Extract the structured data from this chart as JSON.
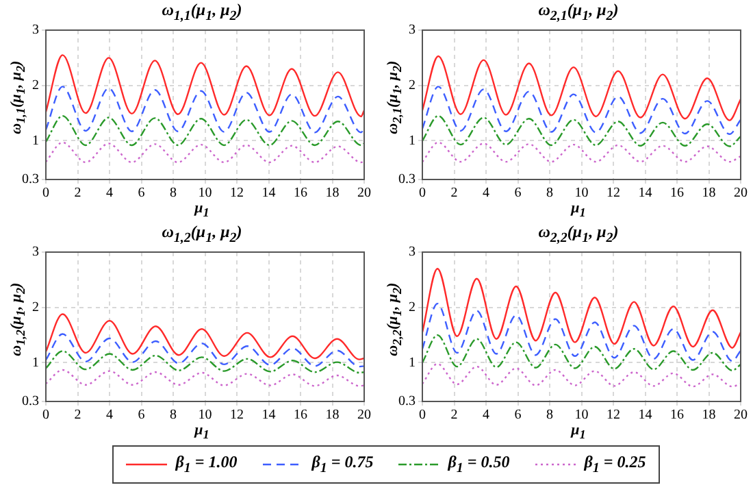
{
  "chart_data": [
    {
      "type": "line",
      "title": "ω$_{1,1}$(μ$_{1}$, μ$_{2}$)",
      "xlabel": "μ$_{1}$",
      "ylabel": "ω$_{1,1}$(μ$_{1}$, μ$_{2}$)",
      "xlim": [
        0,
        20
      ],
      "xticks": [
        0,
        2,
        4,
        6,
        8,
        10,
        12,
        14,
        16,
        18,
        20
      ],
      "ylim": [
        0.3,
        3
      ],
      "yticks": [
        0.3,
        1,
        2,
        3
      ],
      "grid": true,
      "legend": "bottom",
      "marker": "none",
      "x": [
        0,
        1.05,
        2.5,
        3.95,
        5.4,
        6.85,
        8.3,
        9.75,
        11.2,
        12.6,
        14.05,
        15.45,
        16.9,
        18.35,
        19.8,
        20
      ],
      "series": [
        {
          "name": "β$_{1}$ = 1.00",
          "color": "#ff2a2a",
          "line_style": "solid",
          "values": [
            1.52,
            2.55,
            1.5,
            2.5,
            1.49,
            2.45,
            1.48,
            2.41,
            1.47,
            2.35,
            1.46,
            2.3,
            1.45,
            2.24,
            1.44,
            1.55
          ]
        },
        {
          "name": "β$_{1}$ = 0.75",
          "color": "#3d5eff",
          "line_style": "dashed",
          "values": [
            1.2,
            1.98,
            1.18,
            1.95,
            1.17,
            1.92,
            1.17,
            1.9,
            1.16,
            1.87,
            1.16,
            1.84,
            1.15,
            1.8,
            1.15,
            1.22
          ]
        },
        {
          "name": "β$_{1}$ = 0.50",
          "color": "#2a9a2a",
          "line_style": "dashdot",
          "values": [
            0.98,
            1.45,
            0.92,
            1.42,
            0.92,
            1.41,
            0.92,
            1.4,
            0.92,
            1.38,
            0.92,
            1.36,
            0.92,
            1.35,
            0.92,
            0.95
          ]
        },
        {
          "name": "β$_{1}$ = 0.25",
          "color": "#cc66cc",
          "line_style": "dotted",
          "values": [
            0.62,
            0.97,
            0.61,
            0.95,
            0.61,
            0.94,
            0.61,
            0.93,
            0.61,
            0.92,
            0.61,
            0.91,
            0.61,
            0.9,
            0.61,
            0.62
          ]
        }
      ]
    },
    {
      "type": "line",
      "title": "ω$_{2,1}$(μ$_{1}$, μ$_{2}$)",
      "xlabel": "μ$_{1}$",
      "ylabel": "ω$_{2,1}$(μ$_{1}$, μ$_{2}$)",
      "xlim": [
        0,
        20
      ],
      "xticks": [
        0,
        2,
        4,
        6,
        8,
        10,
        12,
        14,
        16,
        18,
        20
      ],
      "ylim": [
        0.3,
        3
      ],
      "yticks": [
        0.3,
        1,
        2,
        3
      ],
      "grid": true,
      "marker": "none",
      "x": [
        0,
        1.0,
        2.4,
        3.85,
        5.25,
        6.7,
        8.1,
        9.5,
        10.9,
        12.3,
        13.7,
        15.1,
        16.5,
        17.9,
        19.3,
        20
      ],
      "series": [
        {
          "color": "#ff2a2a",
          "line_style": "solid",
          "values": [
            1.55,
            2.53,
            1.48,
            2.46,
            1.47,
            2.4,
            1.46,
            2.33,
            1.44,
            2.26,
            1.42,
            2.2,
            1.4,
            2.13,
            1.37,
            1.75
          ]
        },
        {
          "color": "#3d5eff",
          "line_style": "dashed",
          "values": [
            1.22,
            1.98,
            1.18,
            1.93,
            1.17,
            1.89,
            1.16,
            1.84,
            1.15,
            1.8,
            1.14,
            1.76,
            1.13,
            1.72,
            1.12,
            1.38
          ]
        },
        {
          "color": "#2a9a2a",
          "line_style": "dashdot",
          "values": [
            1.0,
            1.45,
            0.93,
            1.42,
            0.93,
            1.4,
            0.92,
            1.38,
            0.92,
            1.35,
            0.91,
            1.33,
            0.91,
            1.3,
            0.9,
            1.08
          ]
        },
        {
          "color": "#cc66cc",
          "line_style": "dotted",
          "values": [
            0.62,
            0.97,
            0.62,
            0.95,
            0.62,
            0.94,
            0.62,
            0.93,
            0.62,
            0.92,
            0.62,
            0.91,
            0.62,
            0.9,
            0.62,
            0.72
          ]
        }
      ]
    },
    {
      "type": "line",
      "title": "ω$_{1,2}$(μ$_{1}$, μ$_{2}$)",
      "xlabel": "μ$_{1}$",
      "ylabel": "ω$_{1,2}$(μ$_{1}$, μ$_{2}$)",
      "xlim": [
        0,
        20
      ],
      "xticks": [
        0,
        2,
        4,
        6,
        8,
        10,
        12,
        14,
        16,
        18,
        20
      ],
      "ylim": [
        0.3,
        3
      ],
      "yticks": [
        0.3,
        1,
        2,
        3
      ],
      "grid": true,
      "marker": "none",
      "x": [
        0,
        1.05,
        2.5,
        4.0,
        5.45,
        6.9,
        8.35,
        9.8,
        11.2,
        12.65,
        14.1,
        15.5,
        16.9,
        18.3,
        19.7,
        20
      ],
      "series": [
        {
          "color": "#ff2a2a",
          "line_style": "solid",
          "values": [
            1.2,
            1.88,
            1.18,
            1.76,
            1.16,
            1.66,
            1.14,
            1.61,
            1.12,
            1.54,
            1.1,
            1.48,
            1.08,
            1.43,
            1.06,
            1.08
          ]
        },
        {
          "color": "#3d5eff",
          "line_style": "dashed",
          "values": [
            1.05,
            1.52,
            1.02,
            1.44,
            1.01,
            1.39,
            0.99,
            1.35,
            0.97,
            1.3,
            0.96,
            1.26,
            0.94,
            1.22,
            0.93,
            0.94
          ]
        },
        {
          "color": "#2a9a2a",
          "line_style": "dashdot",
          "values": [
            0.9,
            1.21,
            0.88,
            1.16,
            0.87,
            1.13,
            0.86,
            1.1,
            0.85,
            1.07,
            0.84,
            1.04,
            0.83,
            1.01,
            0.82,
            0.83
          ]
        },
        {
          "color": "#cc66cc",
          "line_style": "dotted",
          "values": [
            0.62,
            0.87,
            0.6,
            0.85,
            0.6,
            0.83,
            0.6,
            0.82,
            0.59,
            0.8,
            0.59,
            0.79,
            0.58,
            0.77,
            0.58,
            0.59
          ]
        }
      ]
    },
    {
      "type": "line",
      "title": "ω$_{2,2}$(μ$_{1}$, μ$_{2}$)",
      "xlabel": "μ$_{1}$",
      "ylabel": "ω$_{2,2}$(μ$_{1}$, μ$_{2}$)",
      "xlim": [
        0,
        20
      ],
      "xticks": [
        0,
        2,
        4,
        6,
        8,
        10,
        12,
        14,
        16,
        18,
        20
      ],
      "ylim": [
        0.3,
        3
      ],
      "yticks": [
        0.3,
        1,
        2,
        3
      ],
      "grid": true,
      "marker": "none",
      "x": [
        0,
        0.95,
        2.18,
        3.42,
        4.65,
        5.89,
        7.12,
        8.36,
        9.59,
        10.83,
        12.06,
        13.3,
        14.53,
        15.77,
        17.0,
        18.24,
        19.47,
        20
      ],
      "series": [
        {
          "color": "#ff2a2a",
          "line_style": "solid",
          "values": [
            1.55,
            2.7,
            1.48,
            2.52,
            1.43,
            2.38,
            1.4,
            2.27,
            1.37,
            2.18,
            1.34,
            2.1,
            1.31,
            2.02,
            1.29,
            1.95,
            1.27,
            1.55
          ]
        },
        {
          "color": "#3d5eff",
          "line_style": "dashed",
          "values": [
            1.25,
            2.07,
            1.18,
            1.94,
            1.16,
            1.86,
            1.14,
            1.79,
            1.12,
            1.73,
            1.09,
            1.67,
            1.07,
            1.61,
            1.05,
            1.56,
            1.03,
            1.22
          ]
        },
        {
          "color": "#2a9a2a",
          "line_style": "dashdot",
          "values": [
            1.0,
            1.5,
            0.93,
            1.43,
            0.92,
            1.37,
            0.91,
            1.33,
            0.9,
            1.29,
            0.89,
            1.25,
            0.88,
            1.21,
            0.87,
            1.18,
            0.86,
            0.97
          ]
        },
        {
          "color": "#cc66cc",
          "line_style": "dotted",
          "values": [
            0.62,
            0.98,
            0.61,
            0.93,
            0.6,
            0.9,
            0.59,
            0.87,
            0.59,
            0.85,
            0.58,
            0.83,
            0.58,
            0.81,
            0.57,
            0.79,
            0.57,
            0.62
          ]
        }
      ]
    }
  ]
}
